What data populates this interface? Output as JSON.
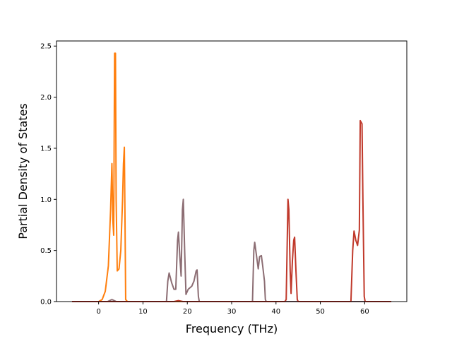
{
  "chart_data": {
    "type": "line",
    "title": "",
    "xlabel": "Frequency (THz)",
    "ylabel": "Partial Density of States",
    "xlim": [
      -9.5,
      69.5
    ],
    "ylim": [
      0,
      2.55
    ],
    "xticks": [
      0,
      10,
      20,
      30,
      40,
      50,
      60
    ],
    "yticks": [
      0.0,
      0.5,
      1.0,
      1.5,
      2.0,
      2.5
    ],
    "ytick_labels": [
      "0.0",
      "0.5",
      "1.0",
      "1.5",
      "2.0",
      "2.5"
    ],
    "grid": false,
    "legend": "none",
    "series": [
      {
        "color": "#ff7f0e",
        "points": [
          [
            -6,
            0
          ],
          [
            0,
            0
          ],
          [
            0.8,
            0.02
          ],
          [
            1.5,
            0.1
          ],
          [
            2.2,
            0.35
          ],
          [
            2.7,
            0.9
          ],
          [
            3.0,
            1.35
          ],
          [
            3.2,
            0.8
          ],
          [
            3.4,
            0.65
          ],
          [
            3.6,
            2.43
          ],
          [
            3.8,
            2.43
          ],
          [
            3.95,
            1.0
          ],
          [
            4.2,
            0.3
          ],
          [
            4.6,
            0.32
          ],
          [
            5.0,
            0.5
          ],
          [
            5.4,
            1.0
          ],
          [
            5.6,
            1.35
          ],
          [
            5.8,
            1.51
          ],
          [
            5.95,
            0.8
          ],
          [
            6.1,
            0.02
          ],
          [
            6.5,
            0
          ],
          [
            66,
            0
          ]
        ]
      },
      {
        "color": "#8c6d73",
        "points": [
          [
            -6,
            0
          ],
          [
            2,
            0
          ],
          [
            3,
            0.02
          ],
          [
            4,
            0
          ],
          [
            15.3,
            0
          ],
          [
            15.6,
            0.2
          ],
          [
            15.9,
            0.28
          ],
          [
            16.5,
            0.18
          ],
          [
            17,
            0.12
          ],
          [
            17.4,
            0.12
          ],
          [
            17.8,
            0.6
          ],
          [
            18.0,
            0.68
          ],
          [
            18.3,
            0.45
          ],
          [
            18.6,
            0.25
          ],
          [
            18.9,
            0.9
          ],
          [
            19.1,
            1.0
          ],
          [
            19.4,
            0.5
          ],
          [
            19.7,
            0.07
          ],
          [
            20.2,
            0.12
          ],
          [
            21,
            0.15
          ],
          [
            21.5,
            0.2
          ],
          [
            22,
            0.3
          ],
          [
            22.2,
            0.31
          ],
          [
            22.5,
            0.05
          ],
          [
            22.7,
            0
          ],
          [
            34.7,
            0
          ],
          [
            35.0,
            0.5
          ],
          [
            35.2,
            0.58
          ],
          [
            35.6,
            0.45
          ],
          [
            36.0,
            0.32
          ],
          [
            36.3,
            0.44
          ],
          [
            36.7,
            0.45
          ],
          [
            37.0,
            0.35
          ],
          [
            37.4,
            0.2
          ],
          [
            37.6,
            0.02
          ],
          [
            37.8,
            0
          ],
          [
            66,
            0
          ]
        ]
      },
      {
        "color": "#c0392b",
        "points": [
          [
            -6,
            0
          ],
          [
            17,
            0
          ],
          [
            18,
            0.01
          ],
          [
            19,
            0
          ],
          [
            42,
            0
          ],
          [
            42.3,
            0.02
          ],
          [
            42.5,
            0.5
          ],
          [
            42.7,
            1.0
          ],
          [
            42.9,
            0.9
          ],
          [
            43.2,
            0.3
          ],
          [
            43.4,
            0.08
          ],
          [
            43.7,
            0.4
          ],
          [
            44.0,
            0.6
          ],
          [
            44.2,
            0.63
          ],
          [
            44.5,
            0.3
          ],
          [
            44.8,
            0.02
          ],
          [
            45,
            0
          ],
          [
            56.9,
            0
          ],
          [
            57.3,
            0.5
          ],
          [
            57.6,
            0.69
          ],
          [
            58,
            0.6
          ],
          [
            58.4,
            0.55
          ],
          [
            58.8,
            0.7
          ],
          [
            59.0,
            1.77
          ],
          [
            59.4,
            1.74
          ],
          [
            59.6,
            1.0
          ],
          [
            59.9,
            0.05
          ],
          [
            60.1,
            0
          ],
          [
            66,
            0
          ]
        ]
      }
    ]
  }
}
